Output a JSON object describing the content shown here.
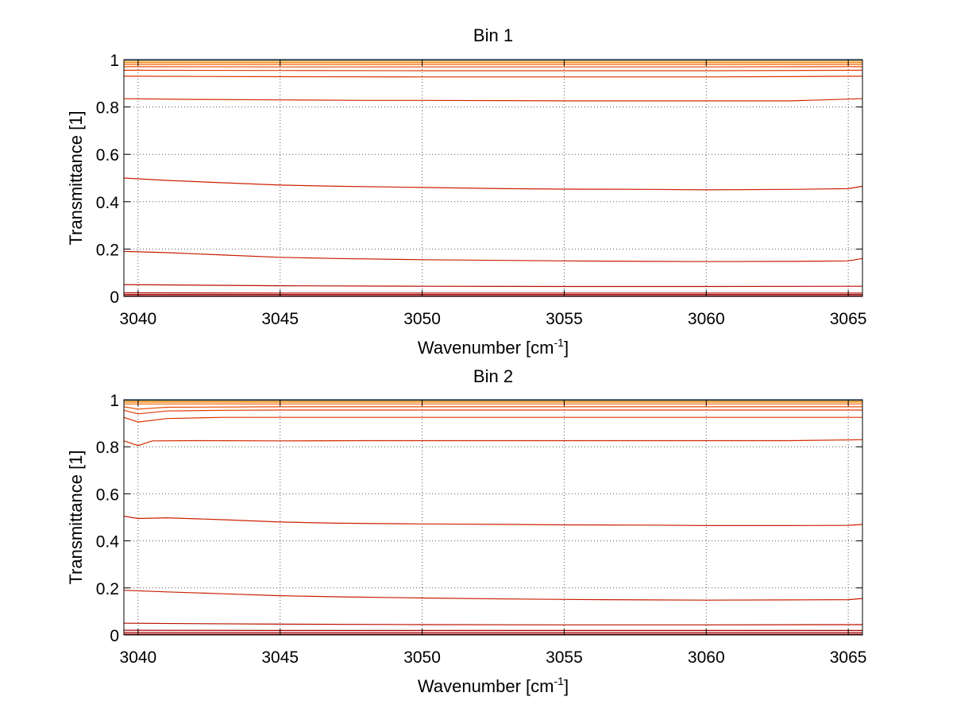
{
  "chart_data": [
    {
      "type": "line",
      "title": "Bin 1",
      "xlabel": "Wavenumber [cm",
      "xlabel_sup": "-1",
      "xlabel_tail": "]",
      "ylabel": "Transmittance [1]",
      "xlim": [
        3039.5,
        3065.5
      ],
      "ylim": [
        0,
        1
      ],
      "xticks": [
        3040,
        3045,
        3050,
        3055,
        3060,
        3065
      ],
      "yticks": [
        0,
        0.2,
        0.4,
        0.6,
        0.8,
        1
      ],
      "ytick_labels": [
        "0",
        "0.2",
        "0.4",
        "0.6",
        "0.8",
        "1"
      ],
      "grid": true,
      "series": [
        {
          "color": "#8b0000",
          "x": [
            3039.5,
            3045,
            3050,
            3055,
            3060,
            3065.5
          ],
          "values": [
            0.002,
            0.002,
            0.002,
            0.002,
            0.002,
            0.002
          ]
        },
        {
          "color": "#a00000",
          "x": [
            3039.5,
            3045,
            3050,
            3055,
            3060,
            3065.5
          ],
          "values": [
            0.008,
            0.008,
            0.008,
            0.008,
            0.008,
            0.008
          ]
        },
        {
          "color": "#b00000",
          "x": [
            3039.5,
            3045,
            3050,
            3055,
            3060,
            3065.5
          ],
          "values": [
            0.015,
            0.014,
            0.014,
            0.014,
            0.014,
            0.014
          ]
        },
        {
          "color": "#b81000",
          "x": [
            3039.5,
            3045,
            3050,
            3055,
            3060,
            3065.5
          ],
          "values": [
            0.05,
            0.045,
            0.043,
            0.042,
            0.042,
            0.043
          ]
        },
        {
          "color": "#c81e00",
          "x": [
            3039.5,
            3041,
            3043,
            3045,
            3047,
            3050,
            3053,
            3055,
            3058,
            3060,
            3063,
            3065,
            3065.5
          ],
          "values": [
            0.19,
            0.185,
            0.175,
            0.165,
            0.16,
            0.155,
            0.152,
            0.15,
            0.148,
            0.147,
            0.148,
            0.15,
            0.16
          ]
        },
        {
          "color": "#cc2200",
          "x": [
            3039.5,
            3041,
            3043,
            3045,
            3047,
            3050,
            3053,
            3055,
            3058,
            3060,
            3063,
            3065,
            3065.5
          ],
          "values": [
            0.5,
            0.49,
            0.48,
            0.47,
            0.465,
            0.46,
            0.455,
            0.453,
            0.452,
            0.45,
            0.452,
            0.455,
            0.465
          ]
        },
        {
          "color": "#d42a00",
          "x": [
            3039.5,
            3042,
            3045,
            3048,
            3050,
            3053,
            3055,
            3058,
            3060,
            3063,
            3065.5
          ],
          "values": [
            0.835,
            0.832,
            0.83,
            0.828,
            0.828,
            0.827,
            0.826,
            0.826,
            0.826,
            0.826,
            0.835
          ]
        },
        {
          "color": "#dc3200",
          "x": [
            3039.5,
            3045,
            3050,
            3055,
            3060,
            3065.5
          ],
          "values": [
            0.93,
            0.928,
            0.927,
            0.927,
            0.927,
            0.93
          ]
        },
        {
          "color": "#e03a00",
          "x": [
            3039.5,
            3045,
            3050,
            3055,
            3060,
            3065.5
          ],
          "values": [
            0.955,
            0.954,
            0.953,
            0.953,
            0.953,
            0.955
          ]
        },
        {
          "color": "#e84800",
          "x": [
            3039.5,
            3045,
            3050,
            3055,
            3060,
            3065.5
          ],
          "values": [
            0.97,
            0.969,
            0.969,
            0.969,
            0.969,
            0.97
          ]
        },
        {
          "color": "#f06000",
          "x": [
            3039.5,
            3045,
            3050,
            3055,
            3060,
            3065.5
          ],
          "values": [
            0.98,
            0.98,
            0.98,
            0.98,
            0.98,
            0.98
          ]
        },
        {
          "color": "#f88000",
          "x": [
            3039.5,
            3045,
            3050,
            3055,
            3060,
            3065.5
          ],
          "values": [
            0.988,
            0.988,
            0.988,
            0.988,
            0.988,
            0.988
          ]
        },
        {
          "color": "#ffa000",
          "x": [
            3039.5,
            3045,
            3050,
            3055,
            3060,
            3065.5
          ],
          "values": [
            0.994,
            0.994,
            0.994,
            0.994,
            0.994,
            0.994
          ]
        },
        {
          "color": "#1f6fd0",
          "x": [
            3039.5,
            3045,
            3050,
            3055,
            3060,
            3065.5
          ],
          "values": [
            0.998,
            0.998,
            0.998,
            0.998,
            0.998,
            0.998
          ]
        }
      ]
    },
    {
      "type": "line",
      "title": "Bin 2",
      "xlabel": "Wavenumber [cm",
      "xlabel_sup": "-1",
      "xlabel_tail": "]",
      "ylabel": "Transmittance [1]",
      "xlim": [
        3039.5,
        3065.5
      ],
      "ylim": [
        0,
        1
      ],
      "xticks": [
        3040,
        3045,
        3050,
        3055,
        3060,
        3065
      ],
      "yticks": [
        0,
        0.2,
        0.4,
        0.6,
        0.8,
        1
      ],
      "ytick_labels": [
        "0",
        "0.2",
        "0.4",
        "0.6",
        "0.8",
        "1"
      ],
      "grid": true,
      "series": [
        {
          "color": "#8b0000",
          "x": [
            3039.5,
            3045,
            3050,
            3055,
            3060,
            3065.5
          ],
          "values": [
            0.003,
            0.003,
            0.003,
            0.003,
            0.003,
            0.003
          ]
        },
        {
          "color": "#a00000",
          "x": [
            3039.5,
            3045,
            3050,
            3055,
            3060,
            3065.5
          ],
          "values": [
            0.01,
            0.01,
            0.01,
            0.01,
            0.01,
            0.01
          ]
        },
        {
          "color": "#b00000",
          "x": [
            3039.5,
            3045,
            3050,
            3055,
            3060,
            3065.5
          ],
          "values": [
            0.02,
            0.019,
            0.019,
            0.019,
            0.019,
            0.019
          ]
        },
        {
          "color": "#b81000",
          "x": [
            3039.5,
            3045,
            3050,
            3055,
            3060,
            3065.5
          ],
          "values": [
            0.05,
            0.046,
            0.044,
            0.043,
            0.043,
            0.044
          ]
        },
        {
          "color": "#c81e00",
          "x": [
            3039.5,
            3041,
            3043,
            3045,
            3047,
            3050,
            3053,
            3055,
            3058,
            3060,
            3063,
            3065,
            3065.5
          ],
          "values": [
            0.19,
            0.183,
            0.175,
            0.167,
            0.162,
            0.157,
            0.153,
            0.151,
            0.149,
            0.148,
            0.149,
            0.15,
            0.155
          ]
        },
        {
          "color": "#cc2200",
          "x": [
            3039.5,
            3040,
            3041,
            3043,
            3045,
            3047,
            3050,
            3053,
            3055,
            3058,
            3060,
            3063,
            3065,
            3065.5
          ],
          "values": [
            0.505,
            0.495,
            0.498,
            0.49,
            0.48,
            0.475,
            0.472,
            0.47,
            0.468,
            0.467,
            0.465,
            0.465,
            0.466,
            0.47
          ]
        },
        {
          "color": "#d42a00",
          "x": [
            3039.5,
            3040,
            3040.5,
            3042,
            3045,
            3048,
            3050,
            3053,
            3055,
            3058,
            3060,
            3063,
            3065.5
          ],
          "values": [
            0.825,
            0.805,
            0.825,
            0.826,
            0.825,
            0.826,
            0.826,
            0.826,
            0.826,
            0.826,
            0.826,
            0.826,
            0.83
          ]
        },
        {
          "color": "#dc3200",
          "x": [
            3039.5,
            3040,
            3041,
            3043,
            3045,
            3050,
            3055,
            3060,
            3065.5
          ],
          "values": [
            0.925,
            0.905,
            0.92,
            0.925,
            0.925,
            0.925,
            0.925,
            0.925,
            0.925
          ]
        },
        {
          "color": "#e03a00",
          "x": [
            3039.5,
            3040,
            3041,
            3043,
            3045,
            3050,
            3055,
            3060,
            3065.5
          ],
          "values": [
            0.955,
            0.94,
            0.952,
            0.955,
            0.956,
            0.956,
            0.956,
            0.956,
            0.956
          ]
        },
        {
          "color": "#e84800",
          "x": [
            3039.5,
            3040,
            3041,
            3045,
            3050,
            3055,
            3060,
            3065.5
          ],
          "values": [
            0.97,
            0.96,
            0.968,
            0.97,
            0.97,
            0.97,
            0.97,
            0.97
          ]
        },
        {
          "color": "#f06000",
          "x": [
            3039.5,
            3045,
            3050,
            3055,
            3060,
            3065.5
          ],
          "values": [
            0.982,
            0.982,
            0.982,
            0.982,
            0.982,
            0.982
          ]
        },
        {
          "color": "#f88000",
          "x": [
            3039.5,
            3045,
            3050,
            3055,
            3060,
            3065.5
          ],
          "values": [
            0.99,
            0.99,
            0.99,
            0.99,
            0.99,
            0.99
          ]
        },
        {
          "color": "#ffa000",
          "x": [
            3039.5,
            3045,
            3050,
            3055,
            3060,
            3065.5
          ],
          "values": [
            0.995,
            0.995,
            0.995,
            0.995,
            0.995,
            0.995
          ]
        },
        {
          "color": "#1f6fd0",
          "x": [
            3039.5,
            3045,
            3050,
            3055,
            3060,
            3065.5
          ],
          "values": [
            0.998,
            0.998,
            0.998,
            0.998,
            0.998,
            0.998
          ]
        }
      ]
    }
  ]
}
